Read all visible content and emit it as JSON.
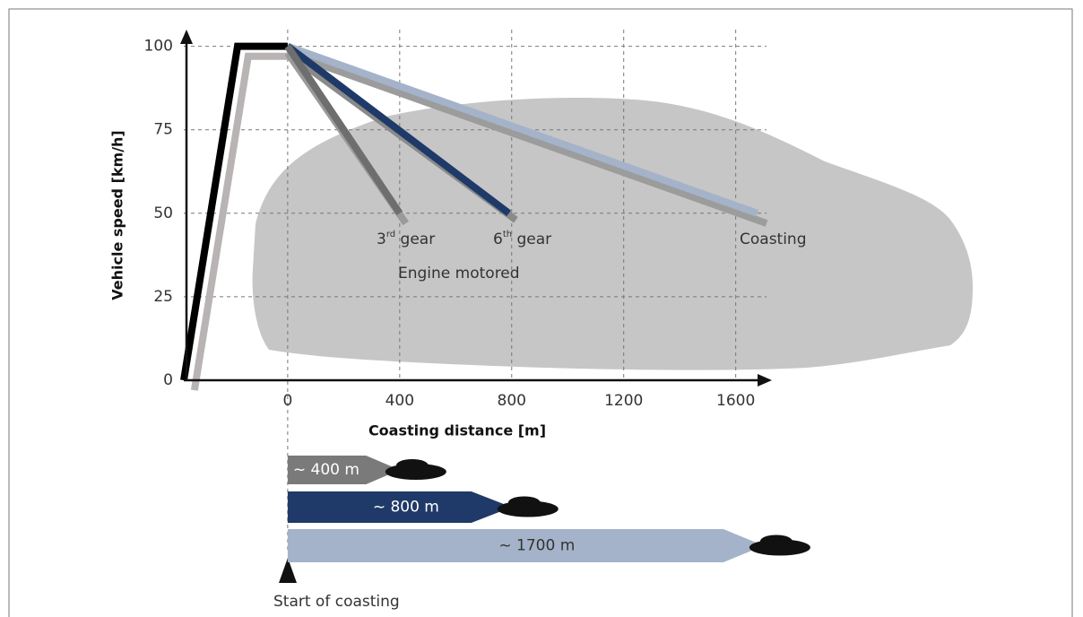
{
  "chart_data": {
    "type": "line",
    "xlabel": "Coasting distance [m]",
    "ylabel": "Vehicle speed [km/h]",
    "xlim": [
      -371,
      1710
    ],
    "ylim": [
      0,
      105
    ],
    "xticks": [
      0,
      400,
      800,
      1200,
      1600
    ],
    "yticks": [
      0,
      25,
      50,
      75,
      100
    ],
    "grid": true,
    "series": [
      {
        "color": "#b8b4b4",
        "x": [
          -333,
          -141,
          0
        ],
        "values": [
          -3,
          97,
          97
        ]
      },
      {
        "color": "#000000",
        "x": [
          -371,
          -179,
          0
        ],
        "values": [
          0,
          100,
          100
        ]
      },
      {
        "color": "#9c9c9c",
        "x": [
          0,
          1710
        ],
        "values": [
          98,
          47
        ]
      },
      {
        "color": "#a4b3c9",
        "x": [
          0,
          1677
        ],
        "values": [
          100,
          50
        ]
      },
      {
        "color": "#8a8a8a",
        "x": [
          0,
          815
        ],
        "values": [
          98,
          48
        ]
      },
      {
        "color": "#1f3a68",
        "x": [
          0,
          790
        ],
        "values": [
          100,
          50
        ]
      },
      {
        "color": "#9a9a9a",
        "x": [
          0,
          422
        ],
        "values": [
          98,
          47
        ]
      },
      {
        "color": "#6e6e6e",
        "x": [
          0,
          400
        ],
        "values": [
          100,
          50
        ]
      }
    ],
    "annotations": {
      "gear3": {
        "base": "3",
        "sup": "rd",
        "text": " gear"
      },
      "gear6": {
        "base": "6",
        "sup": "th",
        "text": " gear"
      },
      "coasting": "Coasting",
      "engine": "Engine motored",
      "start": "Start of coasting"
    },
    "distance_bars": {
      "values": [
        400,
        800,
        1700
      ],
      "value_labels": [
        "~ 400 m",
        "~ 800 m",
        "~ 1700 m"
      ],
      "colors": [
        "#7a7a7a",
        "#1f3a68",
        "#a4b3c9"
      ]
    }
  }
}
